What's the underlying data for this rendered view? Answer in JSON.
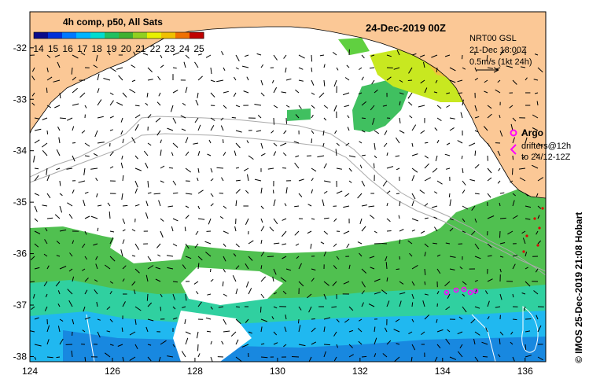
{
  "map": {
    "product_label": "4h comp, p50, All Sats",
    "date_title": "24-Dec-2019 00Z",
    "colorbar_ticks": [
      "14",
      "15",
      "16",
      "17",
      "18",
      "19",
      "20",
      "21",
      "22",
      "23",
      "24",
      "25"
    ],
    "colorbar_colors": [
      "#0a0a8a",
      "#0030d8",
      "#0078ff",
      "#00b4ff",
      "#00dcd0",
      "#20c060",
      "#40b030",
      "#90d020",
      "#e8f000",
      "#f0c000",
      "#f07000",
      "#c00000"
    ],
    "altimetry_lines": [
      "NRT00 GSL",
      "21-Dec 18:00Z",
      "0.5m/s (1kt 24h)"
    ],
    "argo_label": "Argo",
    "drifter_lines": [
      "drifters@12h",
      "to 24/12-12Z"
    ],
    "credit": "© IMOS 25-Dec-2019 21:08 Hobart",
    "x_ticks": [
      "124",
      "126",
      "128",
      "130",
      "132",
      "134",
      "136"
    ],
    "y_ticks": [
      "-32",
      "-33",
      "-34",
      "-35",
      "-36",
      "-37",
      "-38"
    ],
    "lon_range": [
      124,
      136.5
    ],
    "lat_range": [
      -38.1,
      -31.3
    ],
    "land_color": "#fbc896",
    "argo_color": "#ff00ff",
    "drifter_color": "#dd0000"
  }
}
